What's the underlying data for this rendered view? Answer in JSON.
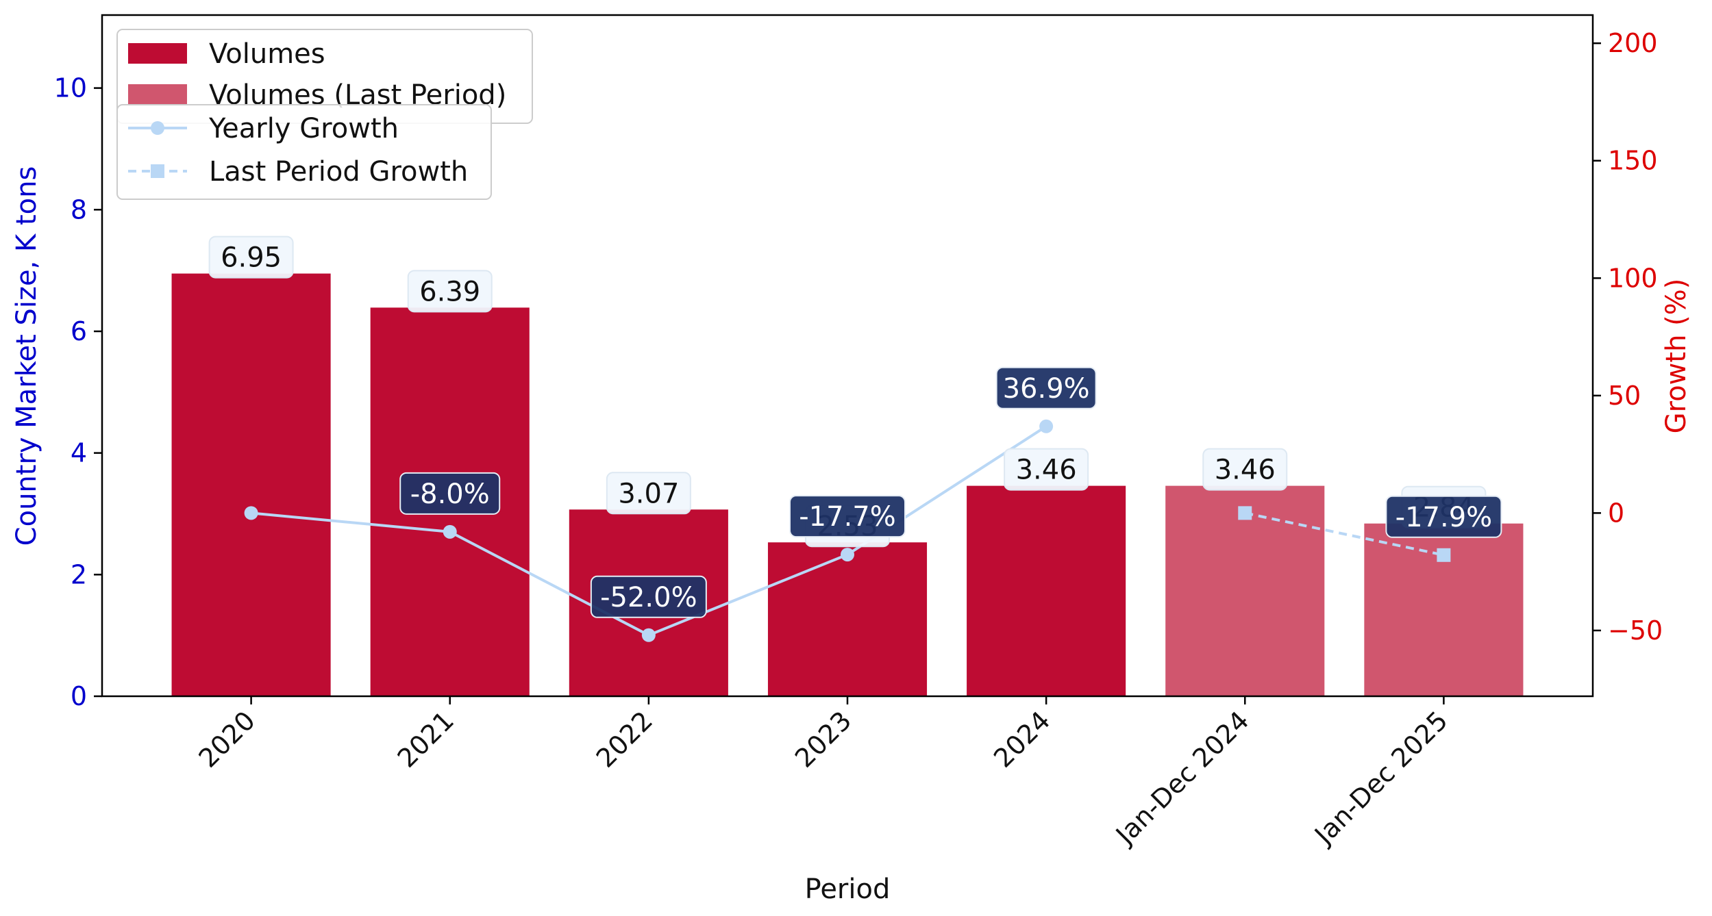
{
  "chart_data": {
    "type": "bar",
    "categories": [
      "2020",
      "2021",
      "2022",
      "2023",
      "2024",
      "Jan-Dec 2024",
      "Jan-Dec 2025"
    ],
    "xlabel": "Period",
    "ylabel": "Country Market Size, K tons",
    "y2label": "Growth (%)",
    "ylim": [
      0,
      11.2
    ],
    "y2lim": [
      -78,
      212
    ],
    "yticks": [
      0,
      2,
      4,
      6,
      8,
      10
    ],
    "y2ticks": [
      -50,
      0,
      50,
      100,
      150,
      200
    ],
    "series": [
      {
        "name": "Volumes",
        "kind": "bar",
        "color": "#be0c33",
        "values": [
          6.95,
          6.39,
          3.07,
          2.53,
          3.46,
          null,
          null
        ],
        "labels": [
          "6.95",
          "6.39",
          "3.07",
          "2.53",
          "3.46",
          "",
          ""
        ]
      },
      {
        "name": "Volumes (Last Period)",
        "kind": "bar",
        "color": "#d0566e",
        "values": [
          null,
          null,
          null,
          null,
          null,
          3.46,
          2.84
        ],
        "labels": [
          "",
          "",
          "",
          "",
          "",
          "3.46",
          "2.84"
        ]
      },
      {
        "name": "Yearly Growth",
        "kind": "line",
        "axis": "right",
        "color": "#b9d7f5",
        "marker": "circle",
        "values": [
          0,
          -8.0,
          -52.0,
          -17.7,
          36.9,
          null,
          null
        ],
        "labels": [
          "",
          "-8.0%",
          "-52.0%",
          "-17.7%",
          "36.9%",
          "",
          ""
        ]
      },
      {
        "name": "Last Period Growth",
        "kind": "line",
        "axis": "right",
        "color": "#b9d7f5",
        "marker": "square",
        "dashed": true,
        "values": [
          null,
          null,
          null,
          null,
          null,
          0,
          -17.9
        ],
        "labels": [
          "",
          "",
          "",
          "",
          "",
          "",
          "-17.9%"
        ]
      }
    ],
    "legend_placement": "top-left",
    "grid": false
  },
  "colors": {
    "left_axis": "#0000cc",
    "right_axis": "#dd0000",
    "label_box_light": "#f0f7fd",
    "label_box_dark": "#1f3366"
  }
}
